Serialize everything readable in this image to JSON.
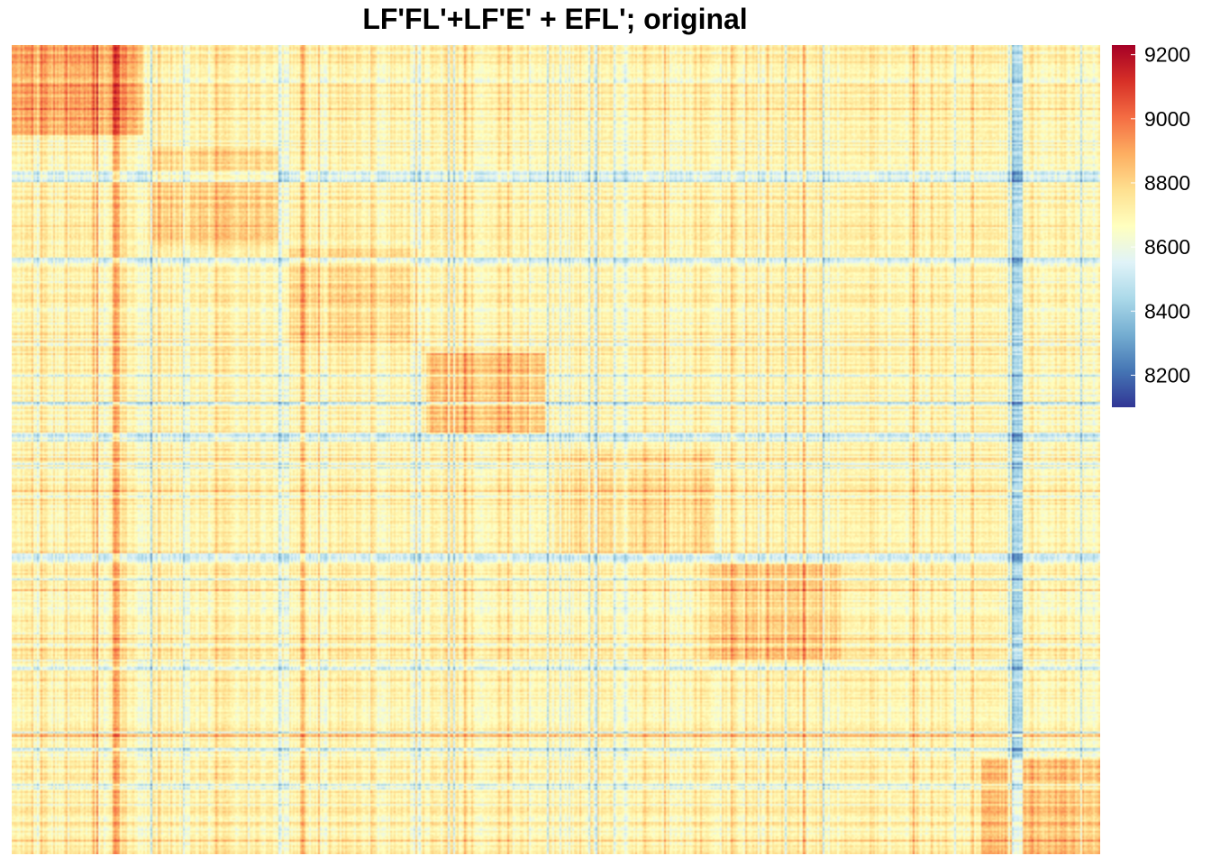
{
  "chart_data": {
    "type": "heatmap",
    "title": "LF'FL'+LF'E' + EFL'; original",
    "xlabel": "",
    "ylabel": "",
    "value_range": [
      8100,
      9230
    ],
    "legend": {
      "position": "right",
      "ticks": [
        {
          "value": 9200,
          "label": "9200"
        },
        {
          "value": 9000,
          "label": "9000"
        },
        {
          "value": 8800,
          "label": "8800"
        },
        {
          "value": 8600,
          "label": "8600"
        },
        {
          "value": 8400,
          "label": "8400"
        },
        {
          "value": 8200,
          "label": "8200"
        }
      ]
    },
    "colormap": [
      "#313695",
      "#4575B4",
      "#74ADD1",
      "#ABD9E9",
      "#E0F3F8",
      "#FFFFBF",
      "#FEE090",
      "#FDAE61",
      "#F46D43",
      "#D73027",
      "#A50026"
    ],
    "approximate_structure": {
      "baseline_value": 8700,
      "block_value_offsets": [
        {
          "cols": [
            0.0,
            0.12
          ],
          "rows": [
            0.0,
            0.11
          ],
          "offset": 180
        },
        {
          "cols": [
            0.125,
            0.245
          ],
          "rows": [
            0.125,
            0.245
          ],
          "offset": 90
        },
        {
          "cols": [
            0.25,
            0.375
          ],
          "rows": [
            0.25,
            0.37
          ],
          "offset": 80
        },
        {
          "cols": [
            0.38,
            0.49
          ],
          "rows": [
            0.38,
            0.48
          ],
          "offset": 140
        },
        {
          "cols": [
            0.5,
            0.645
          ],
          "rows": [
            0.5,
            0.63
          ],
          "offset": 70
        },
        {
          "cols": [
            0.64,
            0.76
          ],
          "rows": [
            0.64,
            0.76
          ],
          "offset": 110
        },
        {
          "cols": [
            0.89,
            1.0
          ],
          "rows": [
            0.88,
            1.0
          ],
          "offset": 140
        }
      ]
    }
  }
}
